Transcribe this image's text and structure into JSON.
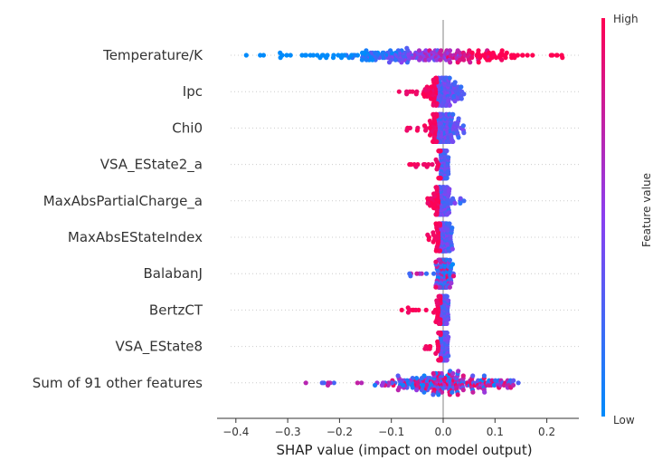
{
  "chart_data": {
    "type": "scatter",
    "subtype": "shap-beeswarm",
    "xlabel": "SHAP value (impact on model output)",
    "xlim": [
      -0.42,
      0.26
    ],
    "xticks": [
      -0.4,
      -0.3,
      -0.2,
      -0.1,
      0.0,
      0.1,
      0.2
    ],
    "xtick_labels": [
      "−0.4",
      "−0.3",
      "−0.2",
      "−0.1",
      "0.0",
      "0.1",
      "0.2"
    ],
    "colorbar": {
      "label": "Feature value",
      "high_label": "High",
      "low_label": "Low",
      "low_color": "#008bfb",
      "high_color": "#ff0052"
    },
    "features": [
      {
        "name": "Temperature/K",
        "min": -0.38,
        "max": 0.23,
        "center": -0.04,
        "spread": 0.11,
        "color_mode": "positive_high",
        "density": 0.85
      },
      {
        "name": "Ipc",
        "min": -0.085,
        "max": 0.04,
        "center": 0.0,
        "spread": 0.015,
        "color_mode": "negative_high",
        "density": 0.6
      },
      {
        "name": "Chi0",
        "min": -0.07,
        "max": 0.04,
        "center": 0.0,
        "spread": 0.015,
        "color_mode": "negative_high",
        "density": 0.6
      },
      {
        "name": "VSA_EState2_a",
        "min": -0.065,
        "max": 0.01,
        "center": 0.0,
        "spread": 0.006,
        "color_mode": "negative_high",
        "density": 0.5
      },
      {
        "name": "MaxAbsPartialCharge_a",
        "min": -0.03,
        "max": 0.04,
        "center": -0.003,
        "spread": 0.008,
        "color_mode": "negative_high",
        "density": 0.5
      },
      {
        "name": "MaxAbsEStateIndex",
        "min": -0.03,
        "max": 0.018,
        "center": 0.0,
        "spread": 0.007,
        "color_mode": "negative_high",
        "density": 0.5
      },
      {
        "name": "BalabanJ",
        "min": -0.065,
        "max": 0.02,
        "center": 0.0,
        "spread": 0.007,
        "color_mode": "mixed",
        "density": 0.5
      },
      {
        "name": "BertzCT",
        "min": -0.08,
        "max": 0.01,
        "center": 0.0,
        "spread": 0.006,
        "color_mode": "negative_high",
        "density": 0.5
      },
      {
        "name": "VSA_EState8",
        "min": -0.035,
        "max": 0.01,
        "center": 0.0,
        "spread": 0.006,
        "color_mode": "negative_high",
        "density": 0.5
      },
      {
        "name": "Sum of 91 other features",
        "min": -0.265,
        "max": 0.145,
        "center": 0.01,
        "spread": 0.06,
        "color_mode": "mixed",
        "density": 0.85
      }
    ]
  }
}
